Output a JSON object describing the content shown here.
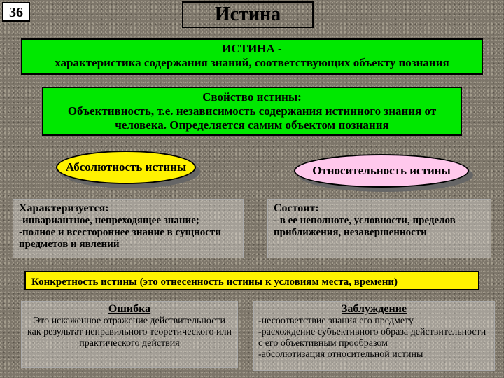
{
  "page_number": "36",
  "title": "Истина",
  "definition": {
    "heading": "ИСТИНА -",
    "text": "характеристика содержания знаний, соответствующих объекту познания"
  },
  "property": {
    "heading": "Свойство истины:",
    "text": "Объективность, т.е. независимость содержания истинного знания от человека. Определяется самим объектом познания"
  },
  "absolute": {
    "title": "Абсолютность истины",
    "heading": "Характеризуется:",
    "line1": "-инвариантное, непреходящее знание;",
    "line2": "-полное и всестороннее знание в сущности предметов и явлений"
  },
  "relative": {
    "title": "Относительность истины",
    "heading": "Состоит:",
    "line1": "- в ее неполноте, условности, пределов приближения, незавершенности"
  },
  "concreteness": {
    "heading": "Конкретность истины",
    "text": " (это отнесенность истины к условиям места, времени)"
  },
  "error": {
    "heading": "Ошибка",
    "text": "Это искаженное отражение действительности как результат неправильного теоретического или практического действия"
  },
  "delusion": {
    "heading": "Заблуждение",
    "line1": "-несоответствие знания его предмету",
    "line2": "-расхождение субъективного образа действительности с его объективным прообразом",
    "line3": "-абсолютизация относительной истины"
  },
  "colors": {
    "green": "#00e800",
    "yellow": "#fff200",
    "pink": "#ffc8ec",
    "bg_base": "#7d766a"
  }
}
